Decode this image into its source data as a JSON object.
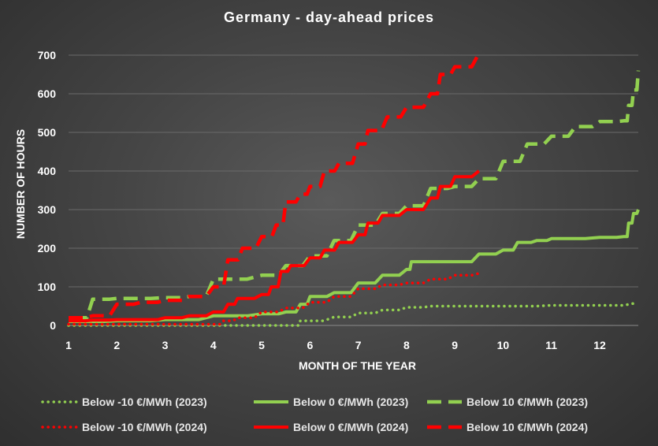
{
  "chart_data": {
    "type": "line",
    "title": "Germany - day-ahead prices",
    "xlabel": "MONTH OF THE YEAR",
    "ylabel": "NUMBER OF HOURS",
    "xlim": [
      1,
      12.8
    ],
    "ylim": [
      0,
      700
    ],
    "x_ticks": [
      "1",
      "2",
      "3",
      "4",
      "5",
      "6",
      "7",
      "8",
      "9",
      "10",
      "11",
      "12"
    ],
    "y_ticks": [
      "0",
      "100",
      "200",
      "300",
      "400",
      "500",
      "600",
      "700"
    ],
    "grid": "horizontal",
    "legend_position": "bottom",
    "series": [
      {
        "name": "Below -10 €/MWh (2023)",
        "color": "#92d050",
        "style": "dotted",
        "x": [
          1,
          5.7,
          5.8,
          6.5,
          7.0,
          7.5,
          8.0,
          8.5,
          9,
          10,
          11,
          12,
          12.7
        ],
        "y": [
          0,
          0,
          12,
          22,
          32,
          40,
          47,
          50,
          50,
          50,
          52,
          52,
          57
        ]
      },
      {
        "name": "Below 0 €/MWh (2023)",
        "color": "#92d050",
        "style": "solid",
        "x": [
          1,
          2,
          3,
          4,
          5,
          5.5,
          5.8,
          6.0,
          6.5,
          7.0,
          7.5,
          8.0,
          8.1,
          9.0,
          9.5,
          10.0,
          10.3,
          10.7,
          11,
          12,
          12.5,
          12.6,
          12.7,
          12.8
        ],
        "y": [
          10,
          12,
          15,
          25,
          30,
          35,
          55,
          75,
          85,
          110,
          130,
          145,
          165,
          165,
          185,
          195,
          215,
          220,
          225,
          228,
          230,
          265,
          290,
          300
        ]
      },
      {
        "name": "Below 10 €/MWh (2023)",
        "color": "#92d050",
        "style": "dashed",
        "x": [
          1.1,
          1.5,
          2,
          3,
          3.5,
          4,
          5,
          5.5,
          6,
          6.5,
          7,
          7.5,
          8,
          8.5,
          9,
          9.5,
          10,
          10.5,
          11,
          11.5,
          12,
          12.5,
          12.6,
          12.7,
          12.8
        ],
        "y": [
          20,
          68,
          70,
          72,
          75,
          120,
          130,
          155,
          180,
          220,
          260,
          290,
          310,
          355,
          360,
          380,
          425,
          470,
          490,
          515,
          528,
          530,
          570,
          610,
          660
        ]
      },
      {
        "name": "Below -10 €/MWh (2024)",
        "color": "#ff0000",
        "style": "dotted",
        "x": [
          1,
          2,
          3,
          4,
          4.2,
          4.5,
          5,
          5.5,
          6,
          6.5,
          7,
          7.5,
          8,
          8.5,
          9,
          9.5
        ],
        "y": [
          3,
          3,
          3,
          3,
          12,
          20,
          35,
          45,
          60,
          75,
          95,
          105,
          110,
          120,
          130,
          135
        ]
      },
      {
        "name": "Below 0 €/MWh (2024)",
        "color": "#ff0000",
        "style": "solid",
        "x": [
          1,
          1.5,
          2,
          2.5,
          3,
          3.5,
          4,
          4.3,
          4.5,
          5,
          5.2,
          5.4,
          5.6,
          6,
          6.3,
          6.6,
          7,
          7.2,
          7.5,
          8,
          8.5,
          8.7,
          9,
          9.5
        ],
        "y": [
          12,
          14,
          15,
          15,
          20,
          25,
          35,
          55,
          70,
          80,
          100,
          140,
          155,
          175,
          195,
          215,
          235,
          265,
          285,
          300,
          330,
          360,
          385,
          400
        ]
      },
      {
        "name": "Below 10 €/MWh (2024)",
        "color": "#ff0000",
        "style": "dashed",
        "x": [
          1,
          1.5,
          2,
          2.5,
          3,
          3.5,
          4,
          4.3,
          4.6,
          5,
          5.3,
          5.5,
          5.8,
          6,
          6.3,
          6.6,
          7,
          7.2,
          7.6,
          8,
          8.5,
          8.7,
          9,
          9.5
        ],
        "y": [
          20,
          25,
          55,
          60,
          65,
          75,
          100,
          170,
          200,
          230,
          260,
          320,
          340,
          360,
          400,
          420,
          470,
          505,
          540,
          565,
          600,
          650,
          670,
          705
        ]
      }
    ]
  }
}
